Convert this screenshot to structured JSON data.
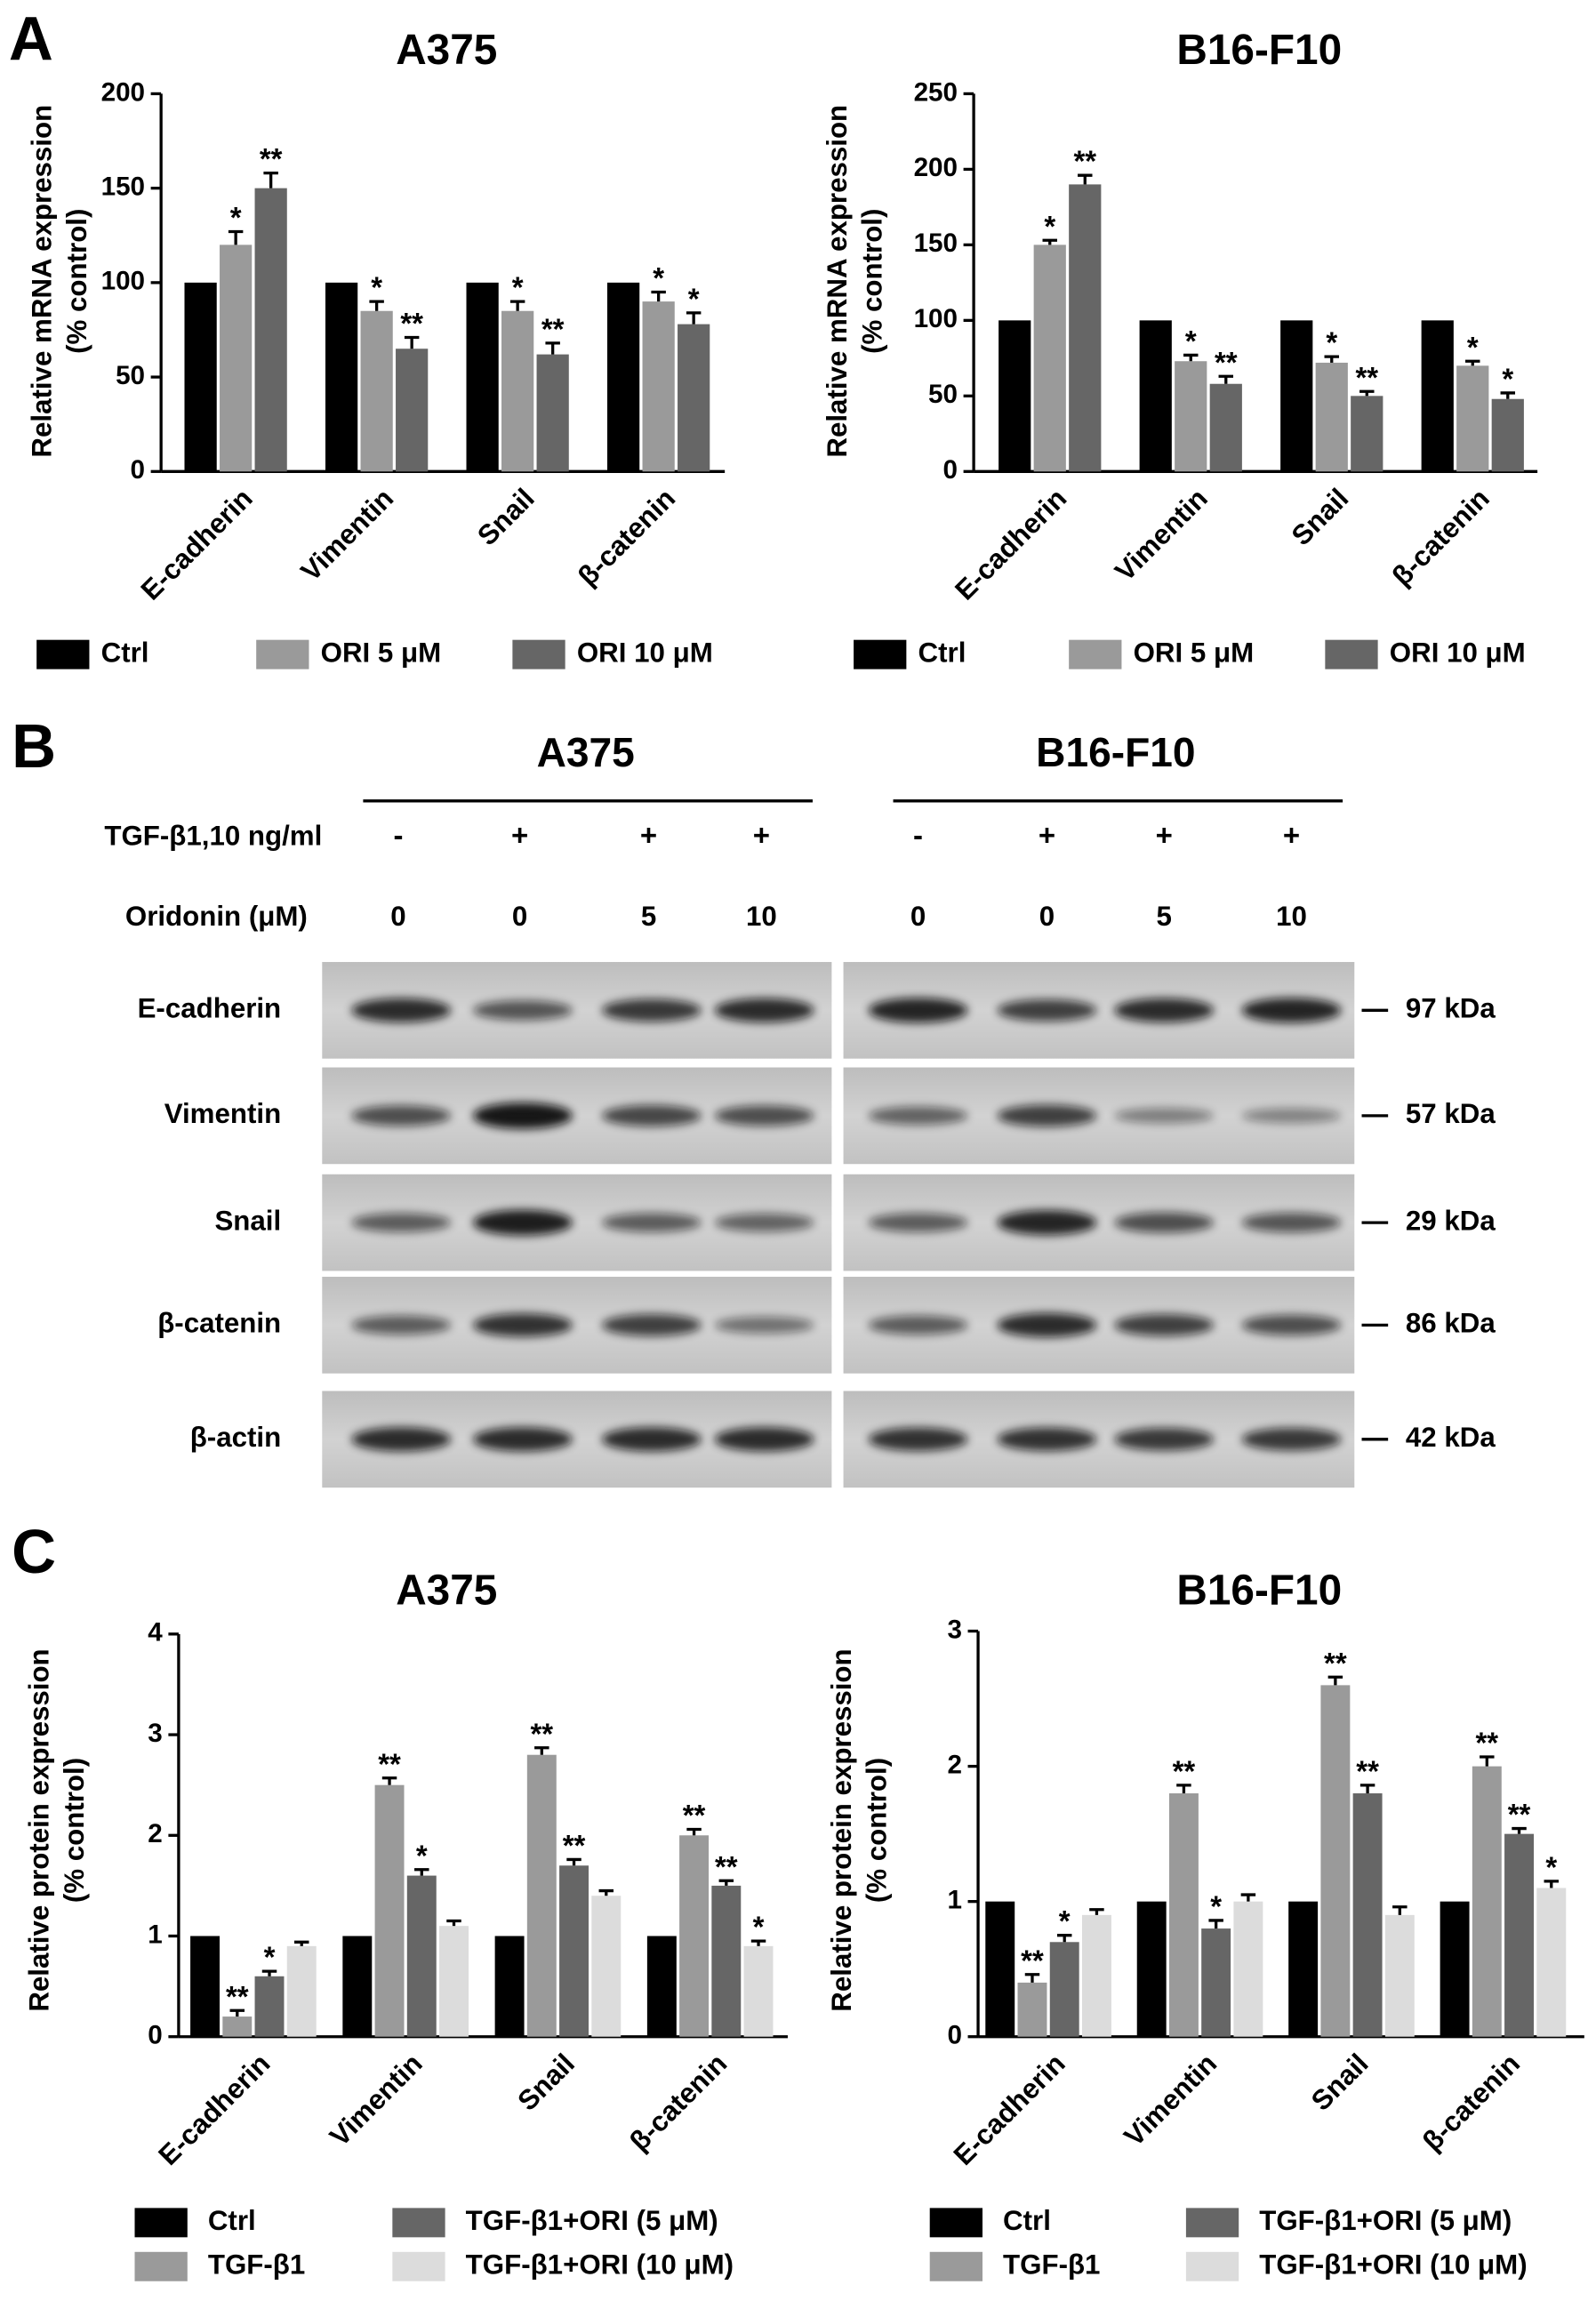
{
  "panels": [
    "A",
    "B",
    "C"
  ],
  "chart_data": [
    {
      "type": "bar",
      "title": "A375",
      "ylabel": [
        "Relative mRNA expression",
        "(% control)"
      ],
      "categories": [
        "E-cadherin",
        "Vimentin",
        "Snail",
        "β-catenin"
      ],
      "ylim": [
        0,
        200
      ],
      "yticks": [
        0,
        50,
        100,
        150,
        200
      ],
      "series": [
        {
          "name": "Ctrl",
          "color": "#000000",
          "values": [
            100,
            100,
            100,
            100
          ]
        },
        {
          "name": "ORI 5 μM",
          "color": "#9a9a9a",
          "values": [
            120,
            85,
            85,
            90
          ],
          "errors": [
            7,
            5,
            5,
            5
          ],
          "stars": [
            "*",
            "*",
            "*",
            "*"
          ]
        },
        {
          "name": "ORI 10 μM",
          "color": "#666666",
          "values": [
            150,
            65,
            62,
            78
          ],
          "errors": [
            8,
            6,
            6,
            6
          ],
          "stars": [
            "**",
            "**",
            "**",
            "*"
          ]
        }
      ]
    },
    {
      "type": "bar",
      "title": "B16-F10",
      "ylabel": [
        "Relative mRNA expression",
        "(% control)"
      ],
      "categories": [
        "E-cadherin",
        "Vimentin",
        "Snail",
        "β-catenin"
      ],
      "ylim": [
        0,
        250
      ],
      "yticks": [
        0,
        50,
        100,
        150,
        200,
        250
      ],
      "series": [
        {
          "name": "Ctrl",
          "color": "#000000",
          "values": [
            100,
            100,
            100,
            100
          ]
        },
        {
          "name": "ORI 5 μM",
          "color": "#9a9a9a",
          "values": [
            150,
            73,
            72,
            70
          ],
          "errors": [
            3,
            4,
            4,
            3
          ],
          "stars": [
            "*",
            "*",
            "*",
            "*"
          ]
        },
        {
          "name": "ORI 10 μM",
          "color": "#666666",
          "values": [
            190,
            58,
            50,
            48
          ],
          "errors": [
            6,
            5,
            3,
            4
          ],
          "stars": [
            "**",
            "**",
            "**",
            "*"
          ]
        }
      ]
    },
    {
      "type": "bar",
      "title": "A375",
      "ylabel": [
        "Relative protein expression",
        "(% control)"
      ],
      "categories": [
        "E-cadherin",
        "Vimentin",
        "Snail",
        "β-catenin"
      ],
      "ylim": [
        0,
        4
      ],
      "yticks": [
        0,
        1,
        2,
        3,
        4
      ],
      "series": [
        {
          "name": "Ctrl",
          "color": "#000000",
          "values": [
            1,
            1,
            1,
            1
          ]
        },
        {
          "name": "TGF-β1",
          "color": "#9a9a9a",
          "values": [
            0.2,
            2.5,
            2.8,
            2.0
          ],
          "errors": [
            0.06,
            0.07,
            0.07,
            0.06
          ],
          "stars": [
            "**",
            "**",
            "**",
            "**"
          ]
        },
        {
          "name": "TGF-β1+ORI (5 μM)",
          "color": "#666666",
          "values": [
            0.6,
            1.6,
            1.7,
            1.5
          ],
          "errors": [
            0.05,
            0.06,
            0.06,
            0.05
          ],
          "stars": [
            "*",
            "*",
            "**",
            "**"
          ]
        },
        {
          "name": "TGF-β1+ORI (10 μM)",
          "color": "#dcdcdc",
          "values": [
            0.9,
            1.1,
            1.4,
            0.9
          ],
          "errors": [
            0.04,
            0.05,
            0.05,
            0.05
          ],
          "stars": [
            null,
            null,
            null,
            "*"
          ]
        }
      ]
    },
    {
      "type": "bar",
      "title": "B16-F10",
      "ylabel": [
        "Relative protein expression",
        "(% control)"
      ],
      "categories": [
        "E-cadherin",
        "Vimentin",
        "Snail",
        "β-catenin"
      ],
      "ylim": [
        0,
        3
      ],
      "yticks": [
        0,
        1,
        2,
        3
      ],
      "series": [
        {
          "name": "Ctrl",
          "color": "#000000",
          "values": [
            1,
            1,
            1,
            1
          ]
        },
        {
          "name": "TGF-β1",
          "color": "#9a9a9a",
          "values": [
            0.4,
            1.8,
            2.6,
            2.0
          ],
          "errors": [
            0.06,
            0.06,
            0.06,
            0.07
          ],
          "stars": [
            "**",
            "**",
            "**",
            "**"
          ]
        },
        {
          "name": "TGF-β1+ORI (5 μM)",
          "color": "#666666",
          "values": [
            0.7,
            0.8,
            1.8,
            1.5
          ],
          "errors": [
            0.05,
            0.06,
            0.06,
            0.04
          ],
          "stars": [
            "*",
            "*",
            "**",
            "**"
          ]
        },
        {
          "name": "TGF-β1+ORI (10 μM)",
          "color": "#dcdcdc",
          "values": [
            0.9,
            1.0,
            0.9,
            1.1
          ],
          "errors": [
            0.04,
            0.05,
            0.06,
            0.05
          ],
          "stars": [
            null,
            null,
            null,
            "*"
          ]
        }
      ]
    }
  ],
  "blot": {
    "row_labels": [
      "TGF-β1,10 ng/ml",
      "Oridonin (μM)"
    ],
    "groups": [
      {
        "title": "A375",
        "tgf": [
          "-",
          "+",
          "+",
          "+"
        ],
        "oridonin": [
          0,
          0,
          5,
          10
        ]
      },
      {
        "title": "B16-F10",
        "tgf": [
          "-",
          "+",
          "+",
          "+"
        ],
        "oridonin": [
          0,
          0,
          5,
          10
        ]
      }
    ],
    "proteins": [
      {
        "name": "E-cadherin",
        "size": "97 kDa"
      },
      {
        "name": "Vimentin",
        "size": "57 kDa"
      },
      {
        "name": "Snail",
        "size": "29 kDa"
      },
      {
        "name": "β-catenin",
        "size": "86 kDa"
      },
      {
        "name": "β-actin",
        "size": "42 kDa"
      }
    ]
  }
}
